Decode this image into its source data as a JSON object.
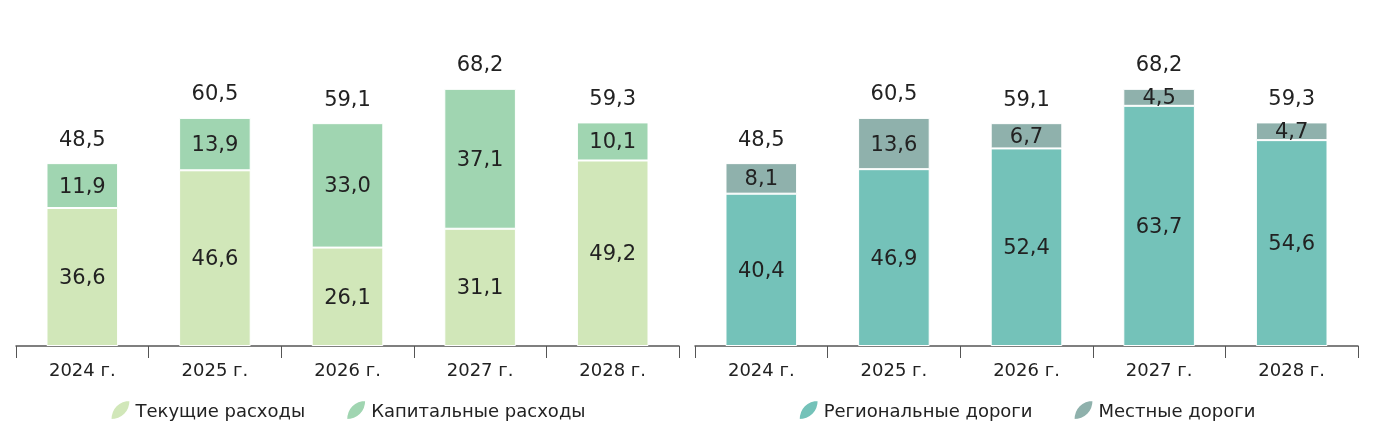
{
  "chart_data": [
    {
      "type": "bar",
      "stacked": true,
      "legend": "bottom",
      "categories": [
        "2024 г.",
        "2025 г.",
        "2026 г.",
        "2027 г.",
        "2028 г."
      ],
      "series": [
        {
          "name": "Текущие расходы",
          "color": "#d1e7b9",
          "values": [
            36.6,
            46.6,
            26.1,
            31.1,
            49.2
          ],
          "value_labels": [
            "36,6",
            "46,6",
            "26,1",
            "31,1",
            "49,2"
          ]
        },
        {
          "name": "Капитальные расходы",
          "color": "#a0d5b1",
          "values": [
            11.9,
            13.9,
            33.0,
            37.1,
            10.1
          ],
          "value_labels": [
            "11,9",
            "13,9",
            "33,0",
            "37,1",
            "10,1"
          ]
        }
      ],
      "totals": [
        "48,5",
        "60,5",
        "59,1",
        "68,2",
        "59,3"
      ]
    },
    {
      "type": "bar",
      "stacked": true,
      "legend": "bottom",
      "categories": [
        "2024 г.",
        "2025 г.",
        "2026 г.",
        "2027 г.",
        "2028 г."
      ],
      "series": [
        {
          "name": "Региональные дороги",
          "color": "#74c2b9",
          "values": [
            40.4,
            46.9,
            52.4,
            63.7,
            54.6
          ],
          "value_labels": [
            "40,4",
            "46,9",
            "52,4",
            "63,7",
            "54,6"
          ]
        },
        {
          "name": "Местные дороги",
          "color": "#8fb1ac",
          "values": [
            8.1,
            13.6,
            6.7,
            4.5,
            4.7
          ],
          "value_labels": [
            "8,1",
            "13,6",
            "6,7",
            "4,5",
            "4,7"
          ]
        }
      ],
      "totals": [
        "48,5",
        "60,5",
        "59,1",
        "68,2",
        "59,3"
      ]
    }
  ]
}
